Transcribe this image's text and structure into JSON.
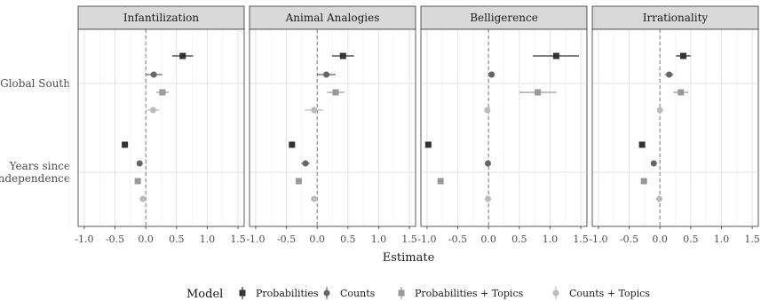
{
  "chart_data": {
    "type": "scatter",
    "subtype": "faceted coefficient plot with error bars",
    "xlabel": "Estimate",
    "x_ticks": [
      -1.0,
      -0.5,
      0.0,
      0.5,
      1.0,
      1.5
    ],
    "x_tick_labels": [
      "-1.0",
      "-0.5",
      "0.0",
      "0.5",
      "1.0",
      "1.5"
    ],
    "xlim": [
      -1.1,
      1.6
    ],
    "reference_line": 0,
    "grid": true,
    "legend_position": "bottom",
    "legend_title": "Model",
    "categories": [
      "Global South",
      "Years since independence"
    ],
    "models": [
      {
        "name": "Probabilities",
        "color": "#333333",
        "shape": "square"
      },
      {
        "name": "Counts",
        "color": "#666666",
        "shape": "circle"
      },
      {
        "name": "Probabilities + Topics",
        "color": "#999999",
        "shape": "square"
      },
      {
        "name": "Counts + Topics",
        "color": "#bbbbbb",
        "shape": "circle"
      }
    ],
    "facets": [
      {
        "title": "Infantilization",
        "estimates": {
          "Global South": [
            {
              "model": "Probabilities",
              "est": 0.6,
              "lo": 0.43,
              "hi": 0.77
            },
            {
              "model": "Counts",
              "est": 0.13,
              "lo": 0.0,
              "hi": 0.27
            },
            {
              "model": "Probabilities + Topics",
              "est": 0.27,
              "lo": 0.17,
              "hi": 0.37
            },
            {
              "model": "Counts + Topics",
              "est": 0.12,
              "lo": 0.02,
              "hi": 0.22
            }
          ],
          "Years since independence": [
            {
              "model": "Probabilities",
              "est": -0.34,
              "lo": -0.36,
              "hi": -0.32
            },
            {
              "model": "Counts",
              "est": -0.1,
              "lo": -0.14,
              "hi": -0.06
            },
            {
              "model": "Probabilities + Topics",
              "est": -0.13,
              "lo": -0.16,
              "hi": -0.1
            },
            {
              "model": "Counts + Topics",
              "est": -0.05,
              "lo": -0.1,
              "hi": 0.0
            }
          ]
        }
      },
      {
        "title": "Animal Analogies",
        "estimates": {
          "Global South": [
            {
              "model": "Probabilities",
              "est": 0.42,
              "lo": 0.24,
              "hi": 0.6
            },
            {
              "model": "Counts",
              "est": 0.15,
              "lo": 0.0,
              "hi": 0.3
            },
            {
              "model": "Probabilities + Topics",
              "est": 0.3,
              "lo": 0.16,
              "hi": 0.44
            },
            {
              "model": "Counts + Topics",
              "est": -0.05,
              "lo": -0.2,
              "hi": 0.1
            }
          ],
          "Years since independence": [
            {
              "model": "Probabilities",
              "est": -0.41,
              "lo": -0.44,
              "hi": -0.38
            },
            {
              "model": "Counts",
              "est": -0.19,
              "lo": -0.26,
              "hi": -0.12
            },
            {
              "model": "Probabilities + Topics",
              "est": -0.3,
              "lo": -0.33,
              "hi": -0.27
            },
            {
              "model": "Counts + Topics",
              "est": -0.05,
              "lo": -0.08,
              "hi": -0.02
            }
          ]
        }
      },
      {
        "title": "Belligerence",
        "estimates": {
          "Global South": [
            {
              "model": "Probabilities",
              "est": 1.1,
              "lo": 0.72,
              "hi": 1.47
            },
            {
              "model": "Counts",
              "est": 0.05,
              "lo": 0.02,
              "hi": 0.08
            },
            {
              "model": "Probabilities + Topics",
              "est": 0.8,
              "lo": 0.5,
              "hi": 1.1
            },
            {
              "model": "Counts + Topics",
              "est": -0.02,
              "lo": -0.04,
              "hi": 0.0
            }
          ],
          "Years since independence": [
            {
              "model": "Probabilities",
              "est": -0.98,
              "lo": -1.0,
              "hi": -0.96
            },
            {
              "model": "Counts",
              "est": -0.01,
              "lo": -0.03,
              "hi": 0.01
            },
            {
              "model": "Probabilities + Topics",
              "est": -0.78,
              "lo": -0.8,
              "hi": -0.76
            },
            {
              "model": "Counts + Topics",
              "est": -0.01,
              "lo": -0.03,
              "hi": 0.01
            }
          ]
        }
      },
      {
        "title": "Irrationality",
        "estimates": {
          "Global South": [
            {
              "model": "Probabilities",
              "est": 0.38,
              "lo": 0.26,
              "hi": 0.5
            },
            {
              "model": "Counts",
              "est": 0.15,
              "lo": 0.08,
              "hi": 0.22
            },
            {
              "model": "Probabilities + Topics",
              "est": 0.34,
              "lo": 0.22,
              "hi": 0.46
            },
            {
              "model": "Counts + Topics",
              "est": 0.0,
              "lo": -0.02,
              "hi": 0.02
            }
          ],
          "Years since independence": [
            {
              "model": "Probabilities",
              "est": -0.29,
              "lo": -0.31,
              "hi": -0.27
            },
            {
              "model": "Counts",
              "est": -0.1,
              "lo": -0.13,
              "hi": -0.07
            },
            {
              "model": "Probabilities + Topics",
              "est": -0.26,
              "lo": -0.29,
              "hi": -0.23
            },
            {
              "model": "Counts + Topics",
              "est": -0.01,
              "lo": -0.03,
              "hi": 0.01
            }
          ]
        }
      }
    ]
  }
}
